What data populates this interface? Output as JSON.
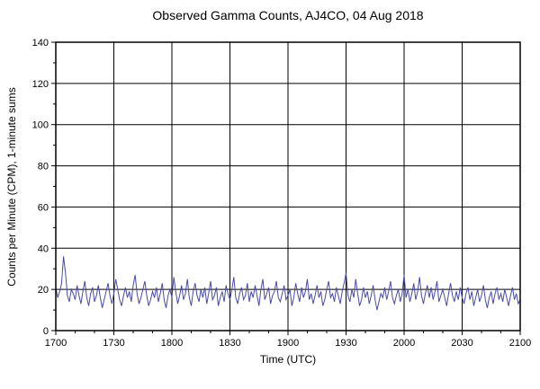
{
  "title": "Observed Gamma Counts, AJ4CO, 04 Aug 2018",
  "chart_data": {
    "type": "line",
    "xlabel": "Time (UTC)",
    "ylabel": "Counts per Minute (CPM), 1-minute sums",
    "x_start_minutes": 0,
    "x_end_minutes": 240,
    "x_major_tick_interval": 30,
    "x_minor_tick_interval": 10,
    "x_tick_labels": [
      "1700",
      "1730",
      "1800",
      "1830",
      "1900",
      "1930",
      "2000",
      "2030",
      "2100"
    ],
    "ylim": [
      0,
      140
    ],
    "y_major_tick_interval": 20,
    "y_minor_tick_interval": 10,
    "y_tick_labels": [
      "0",
      "20",
      "40",
      "60",
      "80",
      "100",
      "120",
      "140"
    ],
    "grid": true,
    "line_color": "#4a4aa5",
    "grid_color": "#000000",
    "frame_color": "#000000",
    "values": [
      21,
      16,
      19,
      23,
      36,
      28,
      17,
      14,
      20,
      18,
      15,
      22,
      17,
      13,
      19,
      24,
      16,
      12,
      18,
      21,
      14,
      17,
      22,
      16,
      11,
      15,
      19,
      23,
      17,
      13,
      18,
      25,
      20,
      15,
      12,
      17,
      21,
      16,
      19,
      14,
      22,
      27,
      18,
      13,
      16,
      20,
      24,
      17,
      12,
      15,
      19,
      16,
      21,
      14,
      18,
      23,
      15,
      11,
      17,
      20,
      16,
      26,
      19,
      13,
      17,
      22,
      15,
      18,
      25,
      16,
      12,
      19,
      23,
      17,
      14,
      20,
      16,
      21,
      13,
      18,
      24,
      15,
      17,
      21,
      12,
      16,
      19,
      14,
      22,
      18,
      15,
      20,
      26,
      16,
      13,
      18,
      21,
      15,
      17,
      23,
      14,
      19,
      16,
      22,
      17,
      12,
      20,
      25,
      15,
      18,
      21,
      13,
      17,
      19,
      24,
      16,
      14,
      18,
      22,
      15,
      17,
      20,
      12,
      16,
      23,
      18,
      14,
      21,
      16,
      19,
      25,
      15,
      18,
      13,
      17,
      22,
      16,
      19,
      12,
      15,
      20,
      24,
      16,
      18,
      14,
      21,
      17,
      13,
      19,
      23,
      28,
      17,
      14,
      20,
      16,
      25,
      18,
      12,
      15,
      21,
      16,
      19,
      13,
      17,
      22,
      15,
      10,
      14,
      18,
      16,
      21,
      15,
      19,
      24,
      16,
      13,
      17,
      20,
      14,
      18,
      27,
      16,
      20,
      14,
      18,
      23,
      15,
      19,
      26,
      17,
      13,
      18,
      22,
      16,
      21,
      15,
      19,
      24,
      14,
      17,
      20,
      16,
      12,
      18,
      23,
      17,
      14,
      19,
      15,
      21,
      16,
      13,
      18,
      21,
      15,
      19,
      12,
      16,
      20,
      14,
      17,
      22,
      15,
      11,
      16,
      19,
      13,
      18,
      21,
      15,
      18,
      14,
      20,
      16,
      12,
      17,
      21,
      15,
      18,
      13,
      15
    ]
  }
}
